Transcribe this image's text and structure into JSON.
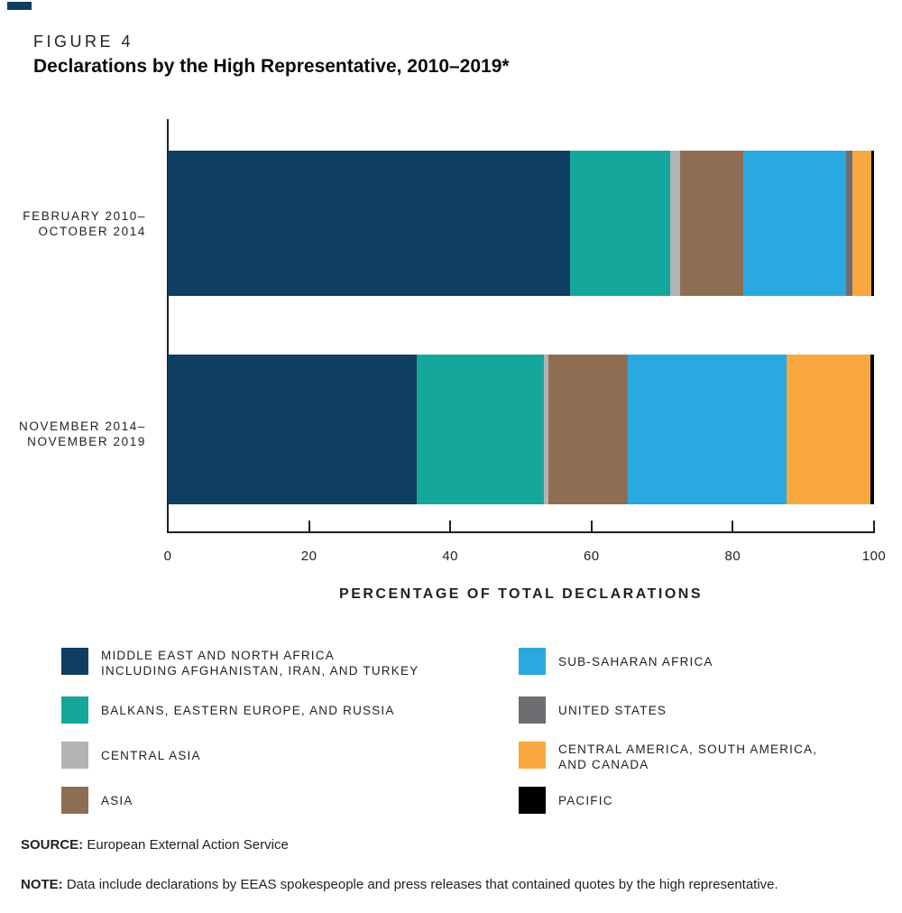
{
  "figure": {
    "label": "FIGURE 4",
    "title": "Declarations by the High Representative, 2010–2019*"
  },
  "chart_data": {
    "type": "bar",
    "orientation": "horizontal",
    "stacked": true,
    "unit": "percent",
    "xlabel": "PERCENTAGE OF TOTAL DECLARATIONS",
    "xlim": [
      0,
      100
    ],
    "x_ticks": [
      0,
      20,
      40,
      60,
      80,
      100
    ],
    "grid": false,
    "legend_position": "bottom",
    "categories": [
      {
        "lines": [
          "FEBRUARY 2010–",
          "OCTOBER 2014"
        ]
      },
      {
        "lines": [
          "NOVEMBER 2014–",
          "NOVEMBER 2019"
        ]
      }
    ],
    "series": [
      {
        "name": "MIDDLE EAST AND NORTH AFRICA INCLUDING AFGHANISTAN, IRAN, AND TURKEY",
        "color": "#0E3E62",
        "values": [
          57.0,
          35.2
        ]
      },
      {
        "name": "BALKANS, EASTERN EUROPE, AND RUSSIA",
        "color": "#16A79C",
        "values": [
          14.1,
          18.1
        ]
      },
      {
        "name": "CENTRAL ASIA",
        "color": "#B2B3B5",
        "values": [
          1.5,
          0.6
        ]
      },
      {
        "name": "ASIA",
        "color": "#8E6E53",
        "values": [
          8.9,
          11.2
        ]
      },
      {
        "name": "SUB-SAHARAN AFRICA",
        "color": "#2AA9E0",
        "values": [
          14.5,
          22.5
        ]
      },
      {
        "name": "UNITED STATES",
        "color": "#6D6E71",
        "values": [
          1.0,
          0.0
        ]
      },
      {
        "name": "CENTRAL AMERICA, SOUTH AMERICA, AND CANADA",
        "color": "#F8A83E",
        "values": [
          2.6,
          11.9
        ]
      },
      {
        "name": "PACIFIC",
        "color": "#000000",
        "values": [
          0.4,
          0.5
        ]
      }
    ]
  },
  "legend": {
    "columns": [
      [
        {
          "color": "#0E3E62",
          "lines": [
            "MIDDLE EAST AND NORTH AFRICA",
            "INCLUDING AFGHANISTAN, IRAN, AND TURKEY"
          ]
        },
        {
          "color": "#16A79C",
          "lines": [
            "BALKANS, EASTERN EUROPE, AND RUSSIA"
          ]
        },
        {
          "color": "#B2B3B5",
          "lines": [
            "CENTRAL ASIA"
          ]
        },
        {
          "color": "#8E6E53",
          "lines": [
            "ASIA"
          ]
        }
      ],
      [
        {
          "color": "#2AA9E0",
          "lines": [
            "SUB-SAHARAN AFRICA"
          ]
        },
        {
          "color": "#6D6E71",
          "lines": [
            "UNITED STATES"
          ]
        },
        {
          "color": "#F8A83E",
          "lines": [
            "CENTRAL AMERICA, SOUTH AMERICA,",
            "AND CANADA"
          ]
        },
        {
          "color": "#000000",
          "lines": [
            "PACIFIC"
          ]
        }
      ]
    ]
  },
  "footer": {
    "source_label": "SOURCE:",
    "source_text": "European External Action Service",
    "note_label": "NOTE:",
    "note_text": "Data include declarations by EEAS spokespeople and press releases that contained quotes by the high representative."
  }
}
